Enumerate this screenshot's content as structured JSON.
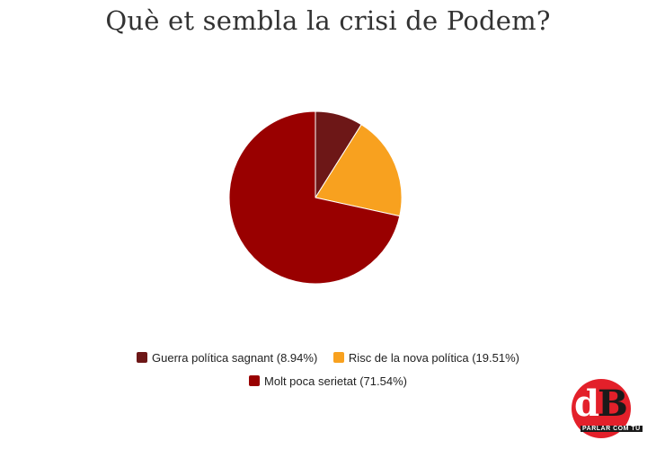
{
  "chart_data": {
    "type": "pie",
    "title": "Què et sembla la crisi de Podem?",
    "categories": [
      "Guerra política sagnant",
      "Risc de la nova política",
      "Molt poca serietat"
    ],
    "values": [
      8.94,
      19.51,
      71.54
    ],
    "legend_labels": [
      "Guerra política sagnant (8.94%)",
      "Risc de la nova política (19.51%)",
      "Molt poca serietat (71.54%)"
    ],
    "colors": [
      "#6d1717",
      "#f8a11f",
      "#990000"
    ],
    "legend_position": "bottom"
  },
  "logo": {
    "text": "dB",
    "tagline": "PARLAR COM TU"
  }
}
